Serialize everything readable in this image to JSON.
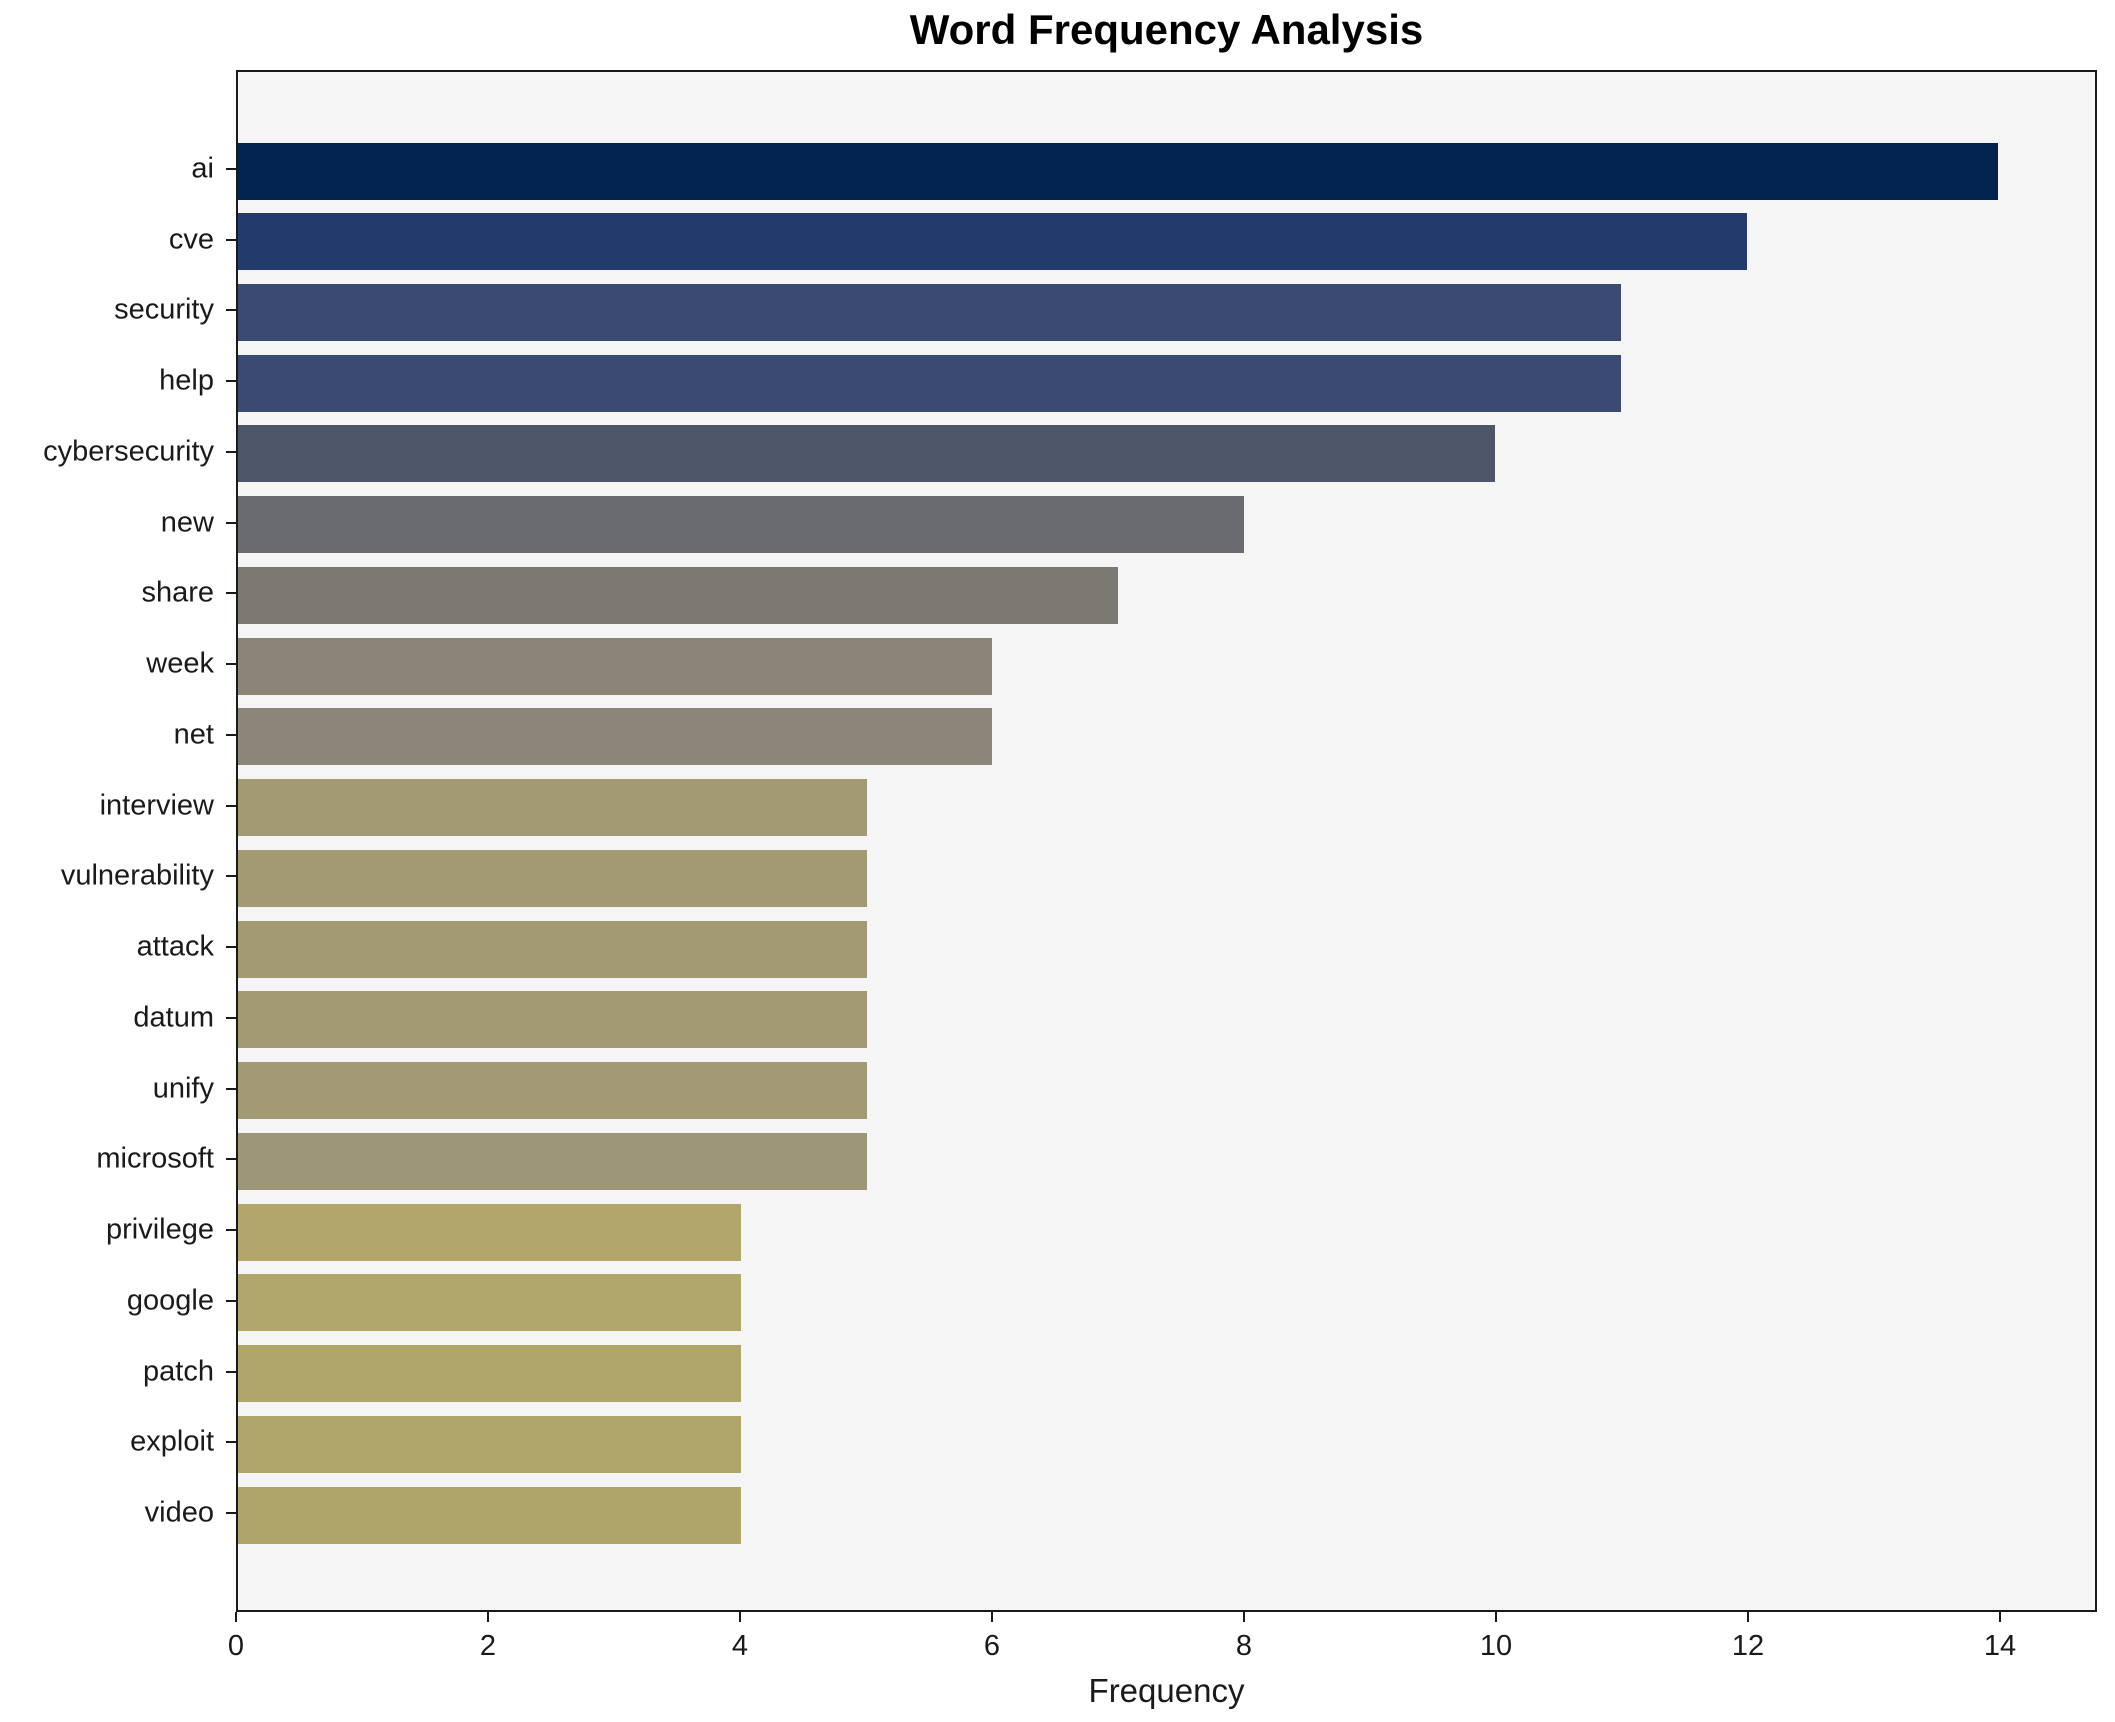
{
  "figure": {
    "background_color": "#ffffff",
    "plot_background_color": "#f5f5f6",
    "spine_color": "#1a1a1a",
    "text_color": "#1a1a1a"
  },
  "chart_data": {
    "type": "bar",
    "orientation": "horizontal",
    "title": "Word Frequency Analysis",
    "xlabel": "Frequency",
    "ylabel": "",
    "grid": false,
    "legend": null,
    "categories": [
      "ai",
      "cve",
      "security",
      "help",
      "cybersecurity",
      "new",
      "share",
      "week",
      "net",
      "interview",
      "vulnerability",
      "attack",
      "datum",
      "unify",
      "microsoft",
      "privilege",
      "google",
      "patch",
      "exploit",
      "video"
    ],
    "values": [
      14,
      12,
      11,
      11,
      10,
      8,
      7,
      6,
      6,
      5,
      5,
      5,
      5,
      5,
      5,
      4,
      4,
      4,
      4,
      4
    ],
    "bar_colors": [
      "#03234f",
      "#233a6c",
      "#3a4a71",
      "#3b4a72",
      "#4d5569",
      "#6a6b70",
      "#7b7972",
      "#8a8577",
      "#8c8678",
      "#a29a72",
      "#a29a72",
      "#a39a73",
      "#a39a73",
      "#a19a74",
      "#9e9678",
      "#b2a66a",
      "#b2a76a",
      "#b1a669",
      "#b1a669",
      "#b0a569"
    ],
    "xticks": [
      0,
      2,
      4,
      6,
      8,
      10,
      12,
      14
    ],
    "xlim": [
      0,
      14.77
    ]
  }
}
